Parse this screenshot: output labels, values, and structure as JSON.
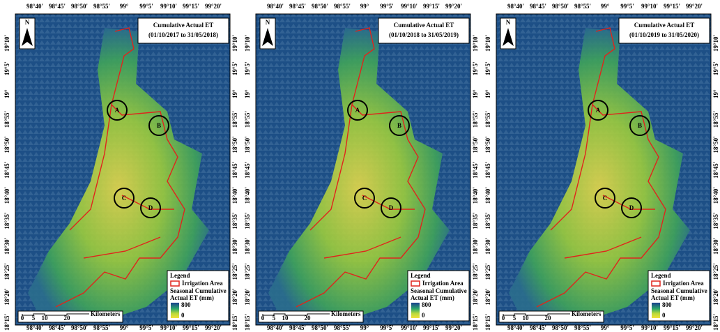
{
  "north": "N",
  "lon_labels": [
    "98°40'",
    "98°45'",
    "98°50'",
    "98°55'",
    "99°",
    "99°5'",
    "99°10'",
    "99°15'",
    "99°20'"
  ],
  "lat_labels": [
    "19°10'",
    "19°5'",
    "19°",
    "18°55'",
    "18°50'",
    "18°45'",
    "18°40'",
    "18°35'",
    "18°30'",
    "18°25'",
    "18°20'",
    "18°15'"
  ],
  "panels": [
    {
      "title": "Cumulative Actual ET",
      "period": "(01/10/2017 to 31/05/2018)"
    },
    {
      "title": "Cumulative Actual ET",
      "period": "(01/10/2018 to 31/05/2019)"
    },
    {
      "title": "Cumulative Actual ET",
      "period": "(01/10/2019 to 31/05/2020)"
    }
  ],
  "sites": [
    "A",
    "B",
    "C",
    "D"
  ],
  "legend": {
    "title": "Legend",
    "irrigation": "Irrigation Area",
    "ramp_title_1": "Seasonal Cumulative",
    "ramp_title_2": "Actual ET (mm)",
    "ramp_max": 800,
    "ramp_min": 0
  },
  "scale_bar": {
    "ticks": [
      0,
      5,
      10,
      20
    ],
    "unit": "Kilometers"
  }
}
